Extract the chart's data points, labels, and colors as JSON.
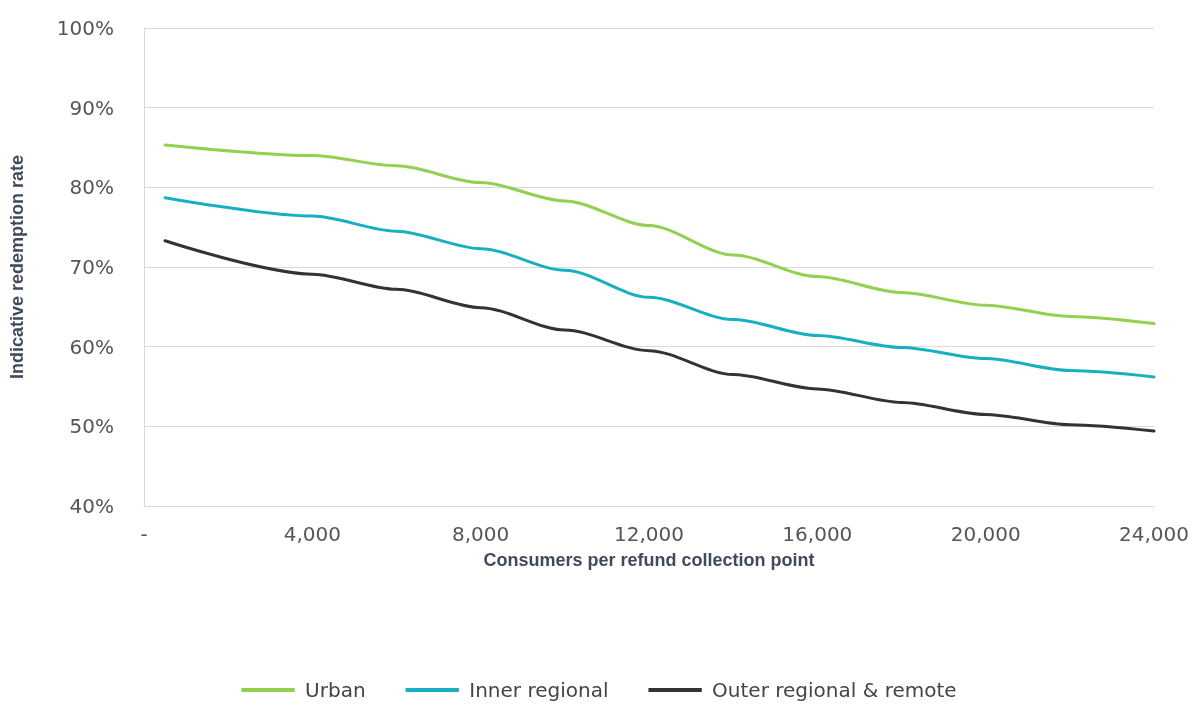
{
  "chart_data": {
    "type": "line",
    "xlabel": "Consumers per refund collection point",
    "ylabel": "Indicative redemption rate",
    "x": [
      500,
      4000,
      6000,
      8000,
      10000,
      12000,
      14000,
      16000,
      18000,
      20000,
      22000,
      24000
    ],
    "series": [
      {
        "name": "Urban",
        "color": "#92d050",
        "values": [
          85.3,
          84.0,
          82.7,
          80.6,
          78.3,
          75.2,
          71.5,
          68.8,
          66.8,
          65.2,
          63.8,
          62.9
        ]
      },
      {
        "name": "Inner regional",
        "color": "#17b0c0",
        "values": [
          78.7,
          76.4,
          74.5,
          72.3,
          69.6,
          66.2,
          63.4,
          61.4,
          59.9,
          58.5,
          57.0,
          56.2
        ]
      },
      {
        "name": "Outer regional & remote",
        "color": "#333333",
        "values": [
          73.3,
          69.1,
          67.2,
          64.9,
          62.1,
          59.5,
          56.5,
          54.7,
          53.0,
          51.5,
          50.2,
          49.4
        ]
      }
    ],
    "xlim": [
      0,
      24000
    ],
    "xticks": [
      {
        "value": 0,
        "label": "-"
      },
      {
        "value": 4000,
        "label": "4,000"
      },
      {
        "value": 8000,
        "label": "8,000"
      },
      {
        "value": 12000,
        "label": "12,000"
      },
      {
        "value": 16000,
        "label": "16,000"
      },
      {
        "value": 20000,
        "label": "20,000"
      },
      {
        "value": 24000,
        "label": "24,000"
      }
    ],
    "ylim": [
      40,
      100
    ],
    "yticks": [
      {
        "value": 40,
        "label": "40%"
      },
      {
        "value": 50,
        "label": "50%"
      },
      {
        "value": 60,
        "label": "60%"
      },
      {
        "value": 70,
        "label": "70%"
      },
      {
        "value": 80,
        "label": "80%"
      },
      {
        "value": 90,
        "label": "90%"
      },
      {
        "value": 100,
        "label": "100%"
      }
    ],
    "grid": "y",
    "legend": "bottom",
    "marker": "none",
    "line_style": "solid"
  }
}
